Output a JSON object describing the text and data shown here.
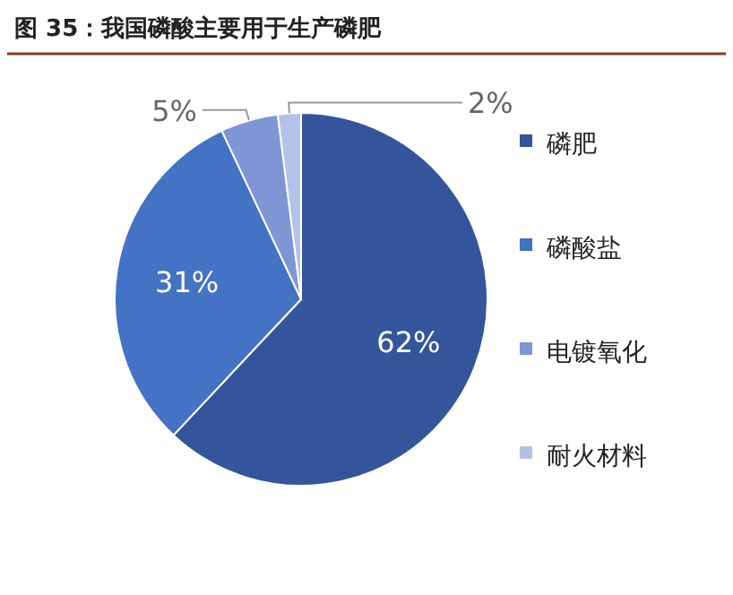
{
  "chart_data": {
    "type": "pie",
    "title": "图 35：我国磷酸主要用于生产磷肥",
    "categories": [
      "磷肥",
      "磷酸盐",
      "电镀氧化",
      "耐火材料"
    ],
    "values": [
      62,
      31,
      5,
      2
    ],
    "colors": [
      "#34559c",
      "#4472c4",
      "#7e95d6",
      "#b4c1e8"
    ],
    "value_labels": [
      "62%",
      "31%",
      "5%",
      "2%"
    ],
    "legend": "right"
  }
}
